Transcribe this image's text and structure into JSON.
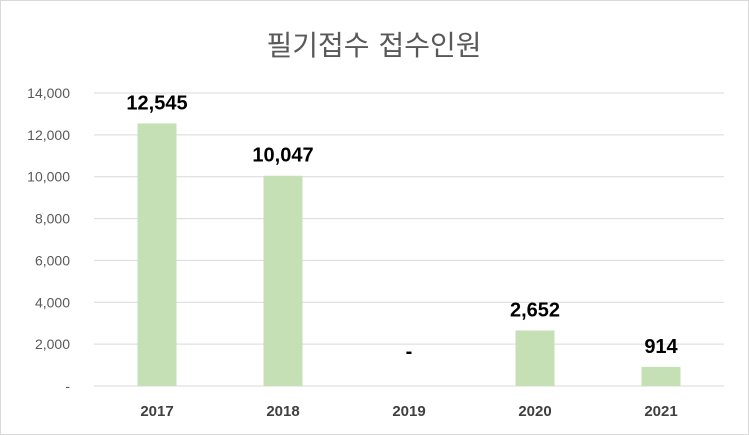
{
  "chart_data": {
    "type": "bar",
    "title": "필기접수 접수인원",
    "categories": [
      "2017",
      "2018",
      "2019",
      "2020",
      "2021"
    ],
    "values": [
      12545,
      10047,
      0,
      2652,
      914
    ],
    "data_labels": [
      "12,545",
      "10,047",
      "-",
      "2,652",
      "914"
    ],
    "ylim": [
      0,
      14000
    ],
    "yticks": [
      0,
      2000,
      4000,
      6000,
      8000,
      10000,
      12000,
      14000
    ],
    "ytick_labels": [
      "-",
      "2,000",
      "4,000",
      "6,000",
      "8,000",
      "10,000",
      "12,000",
      "14,000"
    ],
    "grid": true,
    "bar_color": "#c5e0b4"
  }
}
